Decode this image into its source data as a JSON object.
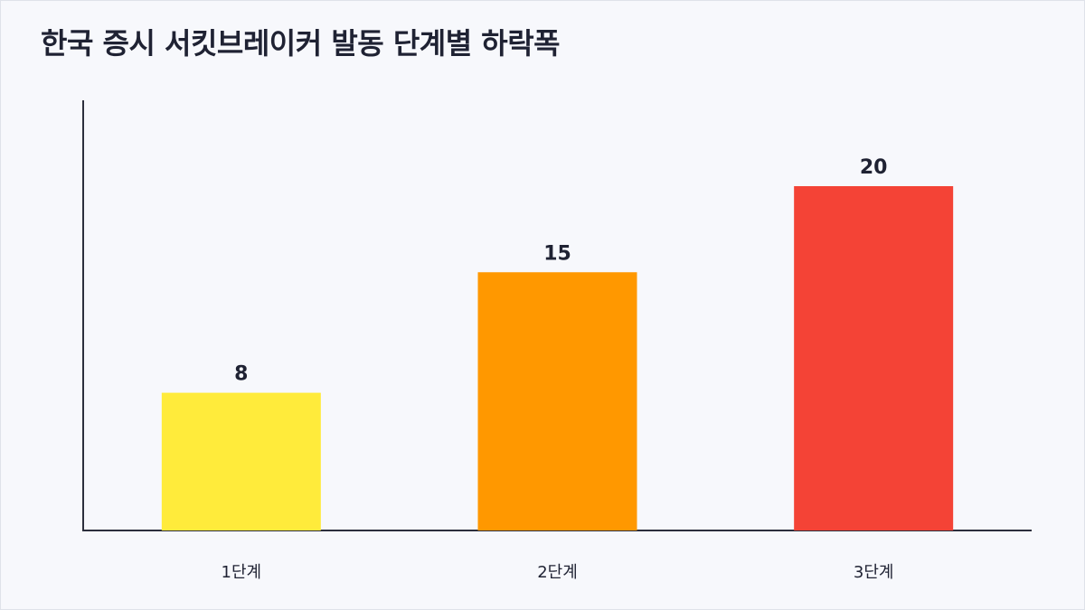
{
  "title": "한국 증시 서킷브레이커 발동 단계별 하락폭",
  "chart_data": {
    "type": "bar",
    "title": "한국 증시 서킷브레이커 발동 단계별 하락폭",
    "categories": [
      "1단계",
      "2단계",
      "3단계"
    ],
    "values": [
      8,
      15,
      20
    ],
    "colors": [
      "#ffeb3b",
      "#ff9800",
      "#f44336"
    ],
    "data_labels": [
      "8",
      "15",
      "20"
    ],
    "xlabel": "",
    "ylabel": "",
    "ylim": [
      0,
      22
    ],
    "grid": false,
    "legend": "none"
  }
}
